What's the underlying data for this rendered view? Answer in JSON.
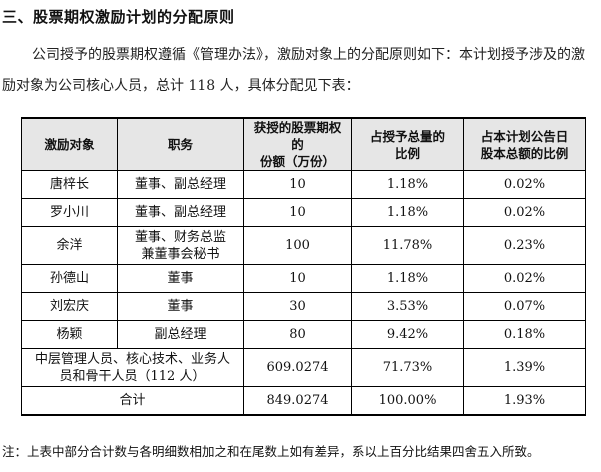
{
  "heading": "三、股票期权激励计划的分配原则",
  "paragraph": "公司授予的股票期权遵循《管理办法》，激励对象上的分配原则如下：本计划授予涉及的激励对象为公司核心人员，总计 118 人，具体分配见下表：",
  "table": {
    "headers": [
      "激励对象",
      "职务",
      "获授的股票期权的份额（万份）",
      "占授予总量的比例",
      "占本计划公告日股本总额的比例"
    ],
    "header_lines": [
      [
        "激励对象"
      ],
      [
        "职务"
      ],
      [
        "获授的股票期权的",
        "份额（万份）"
      ],
      [
        "占授予总量的",
        "比例"
      ],
      [
        "占本计划公告日",
        "股本总额的比例"
      ]
    ],
    "rows": [
      {
        "name": "唐梓长",
        "role": "董事、副总经理",
        "shares": "10",
        "pct_grant": "1.18%",
        "pct_capital": "0.02%"
      },
      {
        "name": "罗小川",
        "role": "董事、副总经理",
        "shares": "10",
        "pct_grant": "1.18%",
        "pct_capital": "0.02%"
      },
      {
        "name": "余洋",
        "role": "董事、财务总监兼董事会秘书",
        "role_lines": [
          "董事、财务总监",
          "兼董事会秘书"
        ],
        "shares": "100",
        "pct_grant": "11.78%",
        "pct_capital": "0.23%"
      },
      {
        "name": "孙德山",
        "role": "董事",
        "shares": "10",
        "pct_grant": "1.18%",
        "pct_capital": "0.02%"
      },
      {
        "name": "刘宏庆",
        "role": "董事",
        "shares": "30",
        "pct_grant": "3.53%",
        "pct_capital": "0.07%"
      },
      {
        "name": "杨颖",
        "role": "副总经理",
        "shares": "80",
        "pct_grant": "9.42%",
        "pct_capital": "0.18%"
      }
    ],
    "mid_row": {
      "label": "中层管理人员、核心技术、业务人员和骨干人员（112 人）",
      "label_lines": [
        "中层管理人员、核心技术、业务人",
        "员和骨干人员（112 人）"
      ],
      "shares": "609.0274",
      "pct_grant": "71.73%",
      "pct_capital": "1.39%"
    },
    "total_row": {
      "label": "合计",
      "shares": "849.0274",
      "pct_grant": "100.00%",
      "pct_capital": "1.93%"
    }
  },
  "note": "注：上表中部分合计数与各明细数相加之和在尾数上如有差异，系以上百分比结果四舍五入所致。"
}
